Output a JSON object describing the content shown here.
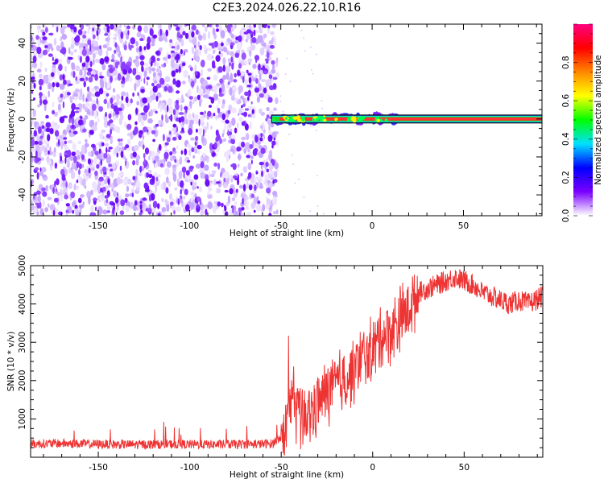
{
  "title": "C2E3.2024.026.22.10.R16",
  "chart_data": [
    {
      "type": "heatmap",
      "name": "spectrogram",
      "xlabel": "Height of straight line (km)",
      "ylabel": "Frequency (Hz)",
      "xlim": [
        -187,
        93
      ],
      "ylim": [
        -51,
        50
      ],
      "x_ticks": [
        -150,
        -100,
        -50,
        0,
        50
      ],
      "x_tick_labels": [
        "-150",
        "-100",
        "-50",
        "0",
        "50"
      ],
      "y_ticks": [
        -40,
        -20,
        0,
        20,
        40
      ],
      "y_tick_labels": [
        "-40",
        "-20",
        "0",
        "20",
        "40"
      ],
      "noise_region_x": [
        -187,
        -53
      ],
      "signal_line": {
        "frequency": 0,
        "x_start": -55,
        "x_end": 93
      },
      "colorbar": {
        "label": "Normalized spectral amplitude",
        "range": [
          0,
          1
        ],
        "ticks": [
          0.0,
          0.2,
          0.4,
          0.6,
          0.8
        ],
        "tick_labels": [
          "0.0",
          "0.2",
          "0.4",
          "0.6",
          "0.8"
        ],
        "colors": [
          "#ffffff",
          "#7b00ff",
          "#0000ff",
          "#00e0ff",
          "#00ff00",
          "#ffff00",
          "#ff8800",
          "#ff0000",
          "#ff0080"
        ]
      },
      "grid": false
    },
    {
      "type": "line",
      "name": "snr",
      "xlabel": "Height of straight line (km)",
      "ylabel": "SNR (10 * v/v)",
      "xlim": [
        -187,
        93
      ],
      "ylim": [
        0,
        5000
      ],
      "x_ticks": [
        -150,
        -100,
        -50,
        0,
        50
      ],
      "x_tick_labels": [
        "-150",
        "-100",
        "-50",
        "0",
        "50"
      ],
      "y_ticks": [
        1000,
        2000,
        3000,
        4000,
        5000
      ],
      "y_tick_labels": [
        "1000",
        "2000",
        "3000",
        "4000",
        "5000"
      ],
      "color": "#ee3333",
      "x": [
        -187,
        -170,
        -150,
        -130,
        -110,
        -90,
        -70,
        -55,
        -49,
        -46,
        -44,
        -42,
        -40,
        -38,
        -35,
        -30,
        -25,
        -20,
        -15,
        -10,
        -5,
        0,
        5,
        10,
        15,
        20,
        25,
        30,
        35,
        40,
        45,
        50,
        55,
        60,
        65,
        70,
        75,
        80,
        85,
        93
      ],
      "y": [
        350,
        360,
        340,
        330,
        340,
        330,
        340,
        350,
        600,
        900,
        1600,
        1100,
        1200,
        1000,
        1100,
        1400,
        1700,
        1900,
        2000,
        2300,
        2600,
        2800,
        3200,
        3300,
        3600,
        3900,
        4300,
        4400,
        4500,
        4600,
        4700,
        4600,
        4500,
        4300,
        4200,
        4100,
        4000,
        4100,
        4000,
        4200
      ],
      "grid": false
    }
  ]
}
